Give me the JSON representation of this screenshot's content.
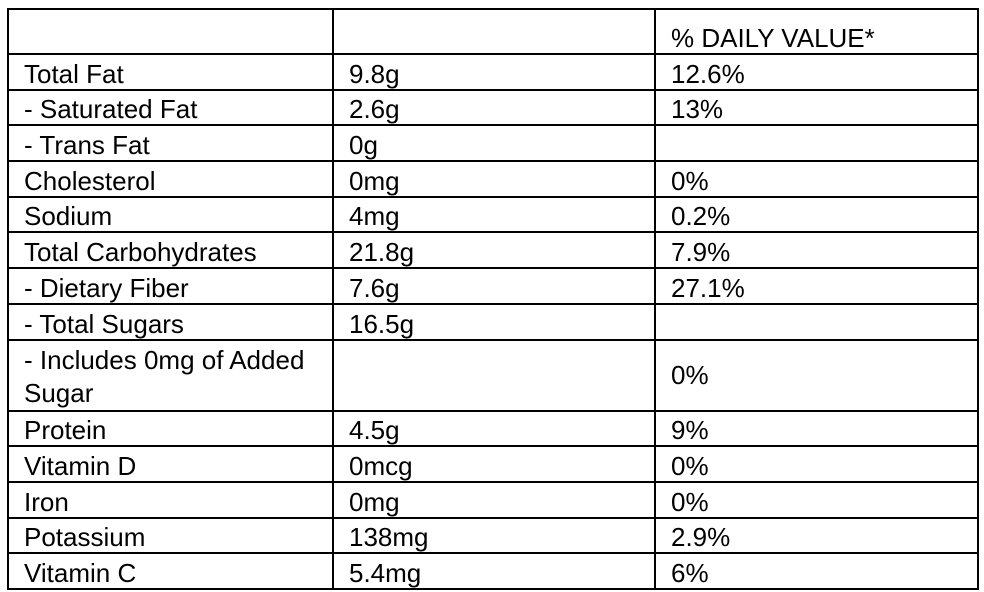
{
  "header": {
    "col1": "",
    "col2": "",
    "col3": "% DAILY VALUE*"
  },
  "rows": [
    {
      "nutrient": "Total Fat",
      "amount": "9.8g",
      "dv": "12.6%"
    },
    {
      "nutrient": "- Saturated Fat",
      "amount": "2.6g",
      "dv": "13%"
    },
    {
      "nutrient": "- Trans Fat",
      "amount": "0g",
      "dv": ""
    },
    {
      "nutrient": "Cholesterol",
      "amount": "0mg",
      "dv": "0%"
    },
    {
      "nutrient": "Sodium",
      "amount": "4mg",
      "dv": "0.2%"
    },
    {
      "nutrient": "Total Carbohydrates",
      "amount": "21.8g",
      "dv": "7.9%"
    },
    {
      "nutrient": "- Dietary Fiber",
      "amount": "7.6g",
      "dv": "27.1%"
    },
    {
      "nutrient": "- Total Sugars",
      "amount": "16.5g",
      "dv": ""
    },
    {
      "nutrient": "- Includes 0mg of Added Sugar",
      "amount": "",
      "dv": "0%"
    },
    {
      "nutrient": "Protein",
      "amount": "4.5g",
      "dv": "9%"
    },
    {
      "nutrient": "Vitamin D",
      "amount": "0mcg",
      "dv": "0%"
    },
    {
      "nutrient": "Iron",
      "amount": "0mg",
      "dv": "0%"
    },
    {
      "nutrient": "Potassium",
      "amount": "138mg",
      "dv": "2.9%"
    },
    {
      "nutrient": "Vitamin C",
      "amount": "5.4mg",
      "dv": "6%"
    }
  ]
}
